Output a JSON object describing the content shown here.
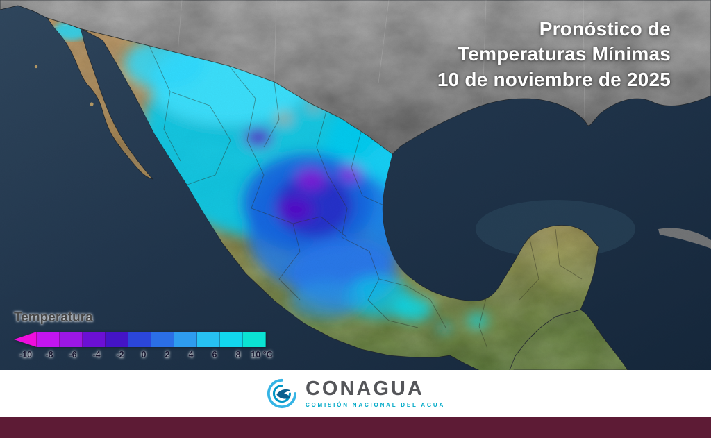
{
  "header": {
    "title_lines": [
      "Pronóstico de",
      "Temperaturas Mínimas",
      "10 de noviembre de 2025"
    ]
  },
  "legend": {
    "title": "Temperatura",
    "unit": "°C",
    "stops": [
      {
        "label": "-10",
        "color": "#ef0ddd"
      },
      {
        "label": "-8",
        "color": "#c315ef"
      },
      {
        "label": "-6",
        "color": "#9b17e4"
      },
      {
        "label": "-4",
        "color": "#6b10d4"
      },
      {
        "label": "-2",
        "color": "#4414c6"
      },
      {
        "label": "0",
        "color": "#2b46da"
      },
      {
        "label": "2",
        "color": "#2b6fe6"
      },
      {
        "label": "4",
        "color": "#2e9cef"
      },
      {
        "label": "6",
        "color": "#27c1f2"
      },
      {
        "label": "8",
        "color": "#12d7ee"
      },
      {
        "label": "10 °C",
        "color": "#0be3d3"
      }
    ]
  },
  "footer": {
    "org_name": "CONAGUA",
    "org_subtitle": "COMISIÓN NACIONAL DEL AGUA"
  },
  "palette": {
    "ocean": "#22374e",
    "bottom_bar": "#5d1b35",
    "land_north": "#c79e65",
    "land_south": "#648440",
    "us_land": "#8f8f8f",
    "title_text": "#ffffff"
  }
}
